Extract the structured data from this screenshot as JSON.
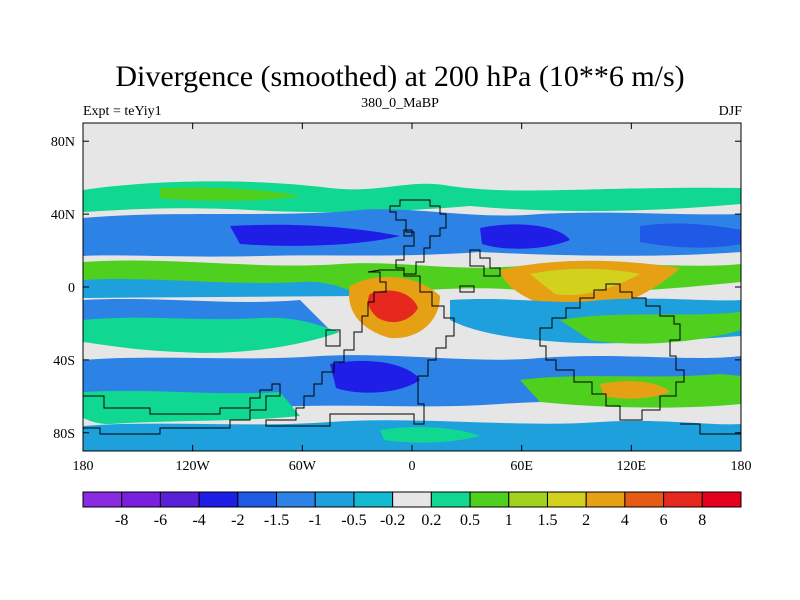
{
  "chart_data": {
    "type": "heatmap",
    "title": "Divergence (smoothed) at 200 hPa (10**6 m/s)",
    "left_label": "Expt = teYiy1",
    "center_label": "380_0_MaBP",
    "right_label": "DJF",
    "x_ticks": [
      "180",
      "120W",
      "60W",
      "0",
      "60E",
      "120E",
      "180"
    ],
    "y_ticks": [
      "80N",
      "40N",
      "0",
      "40S",
      "80S"
    ],
    "x_range": [
      -180,
      180
    ],
    "y_range": [
      -90,
      90
    ],
    "colorbar_labels": [
      "-8",
      "-6",
      "-4",
      "-2",
      "-1.5",
      "-1",
      "-0.5",
      "-0.2",
      "0.2",
      "0.5",
      "1",
      "1.5",
      "2",
      "4",
      "6",
      "8"
    ],
    "colorbar_colors": [
      "#8a2be2",
      "#7a1ee0",
      "#5a20d8",
      "#1e1ee6",
      "#1e5ae6",
      "#2d82e6",
      "#1ea0dc",
      "#14b9d2",
      "#e6e6e6",
      "#10d890",
      "#50d01e",
      "#a0d21e",
      "#d2d21e",
      "#e6a014",
      "#e65a14",
      "#e6281e",
      "#e6001e"
    ]
  }
}
